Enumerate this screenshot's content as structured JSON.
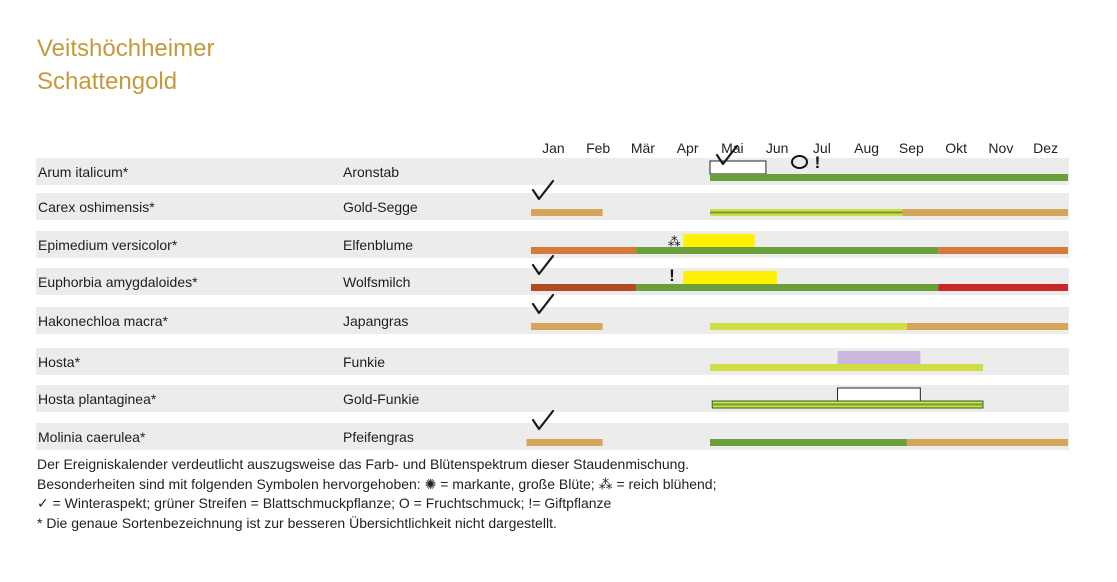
{
  "title": {
    "line1": "Veitshöchheimer",
    "line2": "Schattengold"
  },
  "notes": [
    "Der Ereigniskalender verdeutlicht auszugsweise das Farb- und Blütenspektrum dieser Staudenmischung.",
    "Besonderheiten sind mit folgenden Symbolen hervorgehoben: ✺ = markante, große Blüte; ⁂ = reich blühend;",
    "✓ = Winteraspekt; grüner Streifen = Blattschmuckpflanze; O = Fruchtschmuck; != Giftpflanze",
    "*  Die genaue Sortenbezeichnung ist zur besseren Übersichtlichkeit nicht dargestellt."
  ],
  "colors": {
    "tan": "#d3a65a",
    "green": "#6a9e3a",
    "lime": "#d0de43",
    "yellow": "#fff200",
    "orange": "#d47b3a",
    "rust": "#b14b1f",
    "red": "#c8282a",
    "lavender": "#c9b7e0",
    "rowBg": "#ececec",
    "title": "#c49a3c"
  },
  "chart_data": {
    "type": "table",
    "months": [
      "Jan",
      "Feb",
      "Mär",
      "Apr",
      "Mai",
      "Jun",
      "Jul",
      "Aug",
      "Sep",
      "Okt",
      "Nov",
      "Dez"
    ],
    "rows": [
      {
        "latin": "Arum italicum*",
        "common": "Aronstab",
        "winter": false,
        "fruit": true,
        "poison": true,
        "rich": false,
        "fruit_at": 6.0,
        "poison_at": 6.4,
        "check_at": 4.2,
        "bars": [
          {
            "kind": "upper",
            "from": 4.0,
            "to": 5.25,
            "style": "outline"
          },
          {
            "kind": "lower",
            "from": 4.0,
            "to": 12.0,
            "color": "green"
          }
        ]
      },
      {
        "latin": "Carex oshimensis*",
        "common": "Gold-Segge",
        "winter": true,
        "fruit": false,
        "poison": false,
        "rich": false,
        "bars": [
          {
            "kind": "lower",
            "from": 0.0,
            "to": 1.6,
            "color": "tan"
          },
          {
            "kind": "lower",
            "from": 4.0,
            "to": 8.3,
            "color": "lime",
            "stripe": "green"
          },
          {
            "kind": "lower",
            "from": 8.3,
            "to": 12.0,
            "color": "tan"
          }
        ]
      },
      {
        "latin": "Epimedium versicolor*",
        "common": "Elfenblume",
        "winter": false,
        "fruit": false,
        "poison": false,
        "rich": true,
        "rich_at": 3.2,
        "bars": [
          {
            "kind": "upper",
            "from": 3.4,
            "to": 5.0,
            "color": "yellow"
          },
          {
            "kind": "lower",
            "from": 0.0,
            "to": 2.35,
            "color": "orange"
          },
          {
            "kind": "lower",
            "from": 2.35,
            "to": 9.1,
            "color": "green"
          },
          {
            "kind": "lower",
            "from": 9.1,
            "to": 12.0,
            "color": "orange"
          }
        ]
      },
      {
        "latin": "Euphorbia amygdaloides*",
        "common": "Wolfsmilch",
        "winter": true,
        "fruit": false,
        "poison": true,
        "rich": false,
        "poison_at": 3.15,
        "bars": [
          {
            "kind": "upper",
            "from": 3.4,
            "to": 5.5,
            "color": "yellow"
          },
          {
            "kind": "lower",
            "from": 0.0,
            "to": 2.35,
            "color": "rust"
          },
          {
            "kind": "lower",
            "from": 2.35,
            "to": 9.1,
            "color": "green"
          },
          {
            "kind": "lower",
            "from": 9.1,
            "to": 12.0,
            "color": "red"
          }
        ]
      },
      {
        "latin": "Hakonechloa macra*",
        "common": "Japangras",
        "winter": true,
        "fruit": false,
        "poison": false,
        "rich": false,
        "bars": [
          {
            "kind": "lower",
            "from": 0.0,
            "to": 1.6,
            "color": "tan"
          },
          {
            "kind": "lower",
            "from": 4.0,
            "to": 8.4,
            "color": "lime"
          },
          {
            "kind": "lower",
            "from": 8.4,
            "to": 12.0,
            "color": "tan"
          }
        ]
      },
      {
        "latin": "Hosta*",
        "common": "Funkie",
        "winter": false,
        "fruit": false,
        "poison": false,
        "rich": false,
        "bars": [
          {
            "kind": "upper",
            "from": 6.85,
            "to": 8.7,
            "color": "lavender"
          },
          {
            "kind": "lower",
            "from": 4.0,
            "to": 10.1,
            "color": "lime"
          }
        ]
      },
      {
        "latin": "Hosta plantaginea*",
        "common": "Gold-Funkie",
        "winter": false,
        "fruit": false,
        "poison": false,
        "rich": false,
        "bars": [
          {
            "kind": "upper",
            "from": 6.85,
            "to": 8.7,
            "style": "outline"
          },
          {
            "kind": "lower",
            "from": 4.05,
            "to": 10.1,
            "color": "lime",
            "stripe": "green",
            "border": true
          }
        ]
      },
      {
        "latin": "Molinia caerulea*",
        "common": "Pfeifengras",
        "winter": true,
        "fruit": false,
        "poison": false,
        "rich": false,
        "bars": [
          {
            "kind": "lower",
            "from": -0.1,
            "to": 1.6,
            "color": "tan"
          },
          {
            "kind": "lower",
            "from": 4.0,
            "to": 8.4,
            "color": "green"
          },
          {
            "kind": "lower",
            "from": 8.4,
            "to": 12.0,
            "color": "tan"
          }
        ]
      }
    ]
  }
}
